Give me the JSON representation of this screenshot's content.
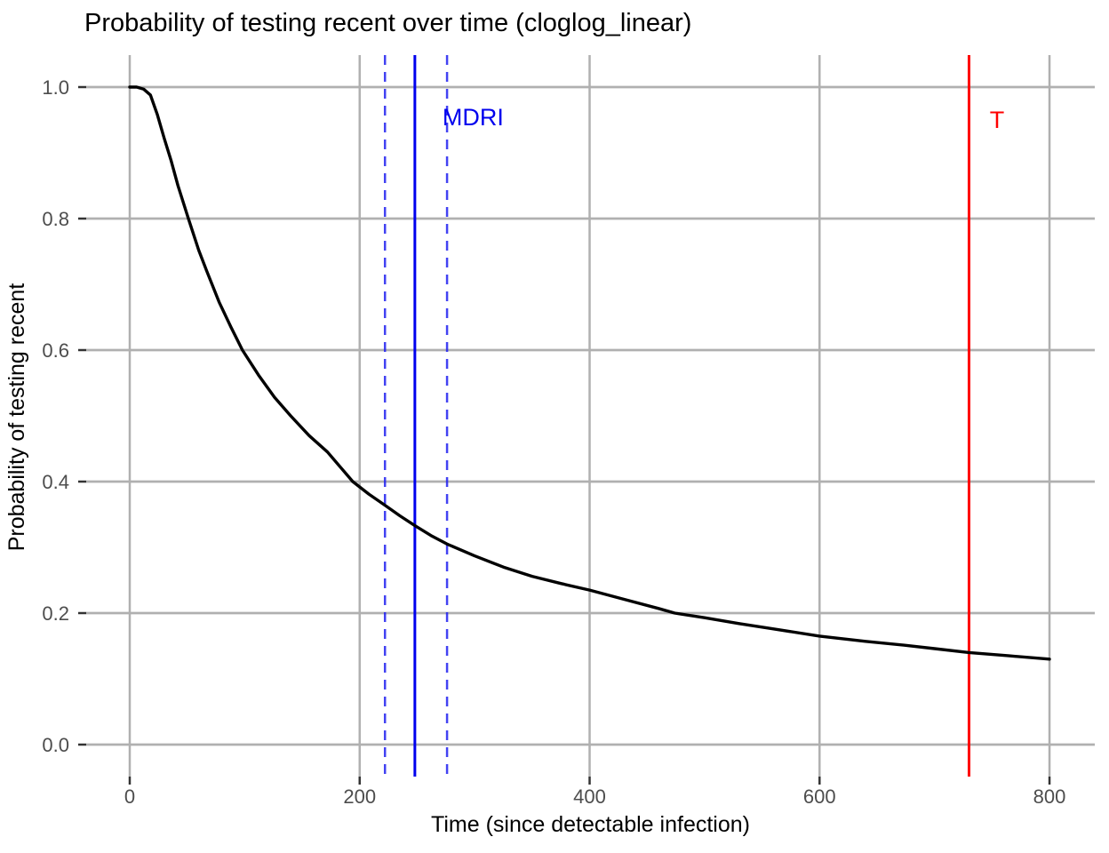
{
  "chart_data": {
    "type": "line",
    "title": "Probability of testing recent over time (cloglog_linear)",
    "xlabel": "Time (since detectable infection)",
    "ylabel": "Probability of testing recent",
    "x_ticks": [
      0,
      200,
      400,
      600,
      800
    ],
    "y_ticks": [
      0.0,
      0.2,
      0.4,
      0.6,
      0.8,
      1.0
    ],
    "xlim": [
      0,
      800
    ],
    "ylim": [
      0,
      1
    ],
    "grid": "major gridlines only, grey on white, no panel border",
    "legend": "none",
    "colors": {
      "curve": "#000000",
      "grid": "#b0b0b0",
      "tick_mark": "#333333",
      "tick_label": "#4d4d4d",
      "mdri_blue": "#0000ee",
      "ci_blue_dashed": "#2222f0",
      "t_red": "#ff0000"
    },
    "series": [
      {
        "name": "probability-of-testing-recent-curve",
        "color": "#000000",
        "points": [
          [
            0,
            1.0
          ],
          [
            6,
            1.0
          ],
          [
            12,
            0.997
          ],
          [
            18,
            0.988
          ],
          [
            24,
            0.958
          ],
          [
            30,
            0.922
          ],
          [
            36,
            0.888
          ],
          [
            42,
            0.85
          ],
          [
            51,
            0.8
          ],
          [
            60,
            0.752
          ],
          [
            67,
            0.72
          ],
          [
            78,
            0.672
          ],
          [
            88,
            0.635
          ],
          [
            98,
            0.6
          ],
          [
            112,
            0.562
          ],
          [
            126,
            0.528
          ],
          [
            140,
            0.5
          ],
          [
            156,
            0.47
          ],
          [
            172,
            0.445
          ],
          [
            194,
            0.4
          ],
          [
            208,
            0.381
          ],
          [
            222,
            0.364
          ],
          [
            235,
            0.348
          ],
          [
            248,
            0.333
          ],
          [
            262,
            0.318
          ],
          [
            276,
            0.305
          ],
          [
            300,
            0.287
          ],
          [
            325,
            0.27
          ],
          [
            350,
            0.256
          ],
          [
            375,
            0.245
          ],
          [
            400,
            0.235
          ],
          [
            430,
            0.221
          ],
          [
            460,
            0.207
          ],
          [
            474,
            0.2
          ],
          [
            500,
            0.193
          ],
          [
            530,
            0.184
          ],
          [
            560,
            0.176
          ],
          [
            600,
            0.165
          ],
          [
            640,
            0.157
          ],
          [
            675,
            0.151
          ],
          [
            700,
            0.146
          ],
          [
            730,
            0.14
          ],
          [
            765,
            0.135
          ],
          [
            800,
            0.13
          ]
        ]
      }
    ],
    "vlines": [
      {
        "name": "mdri-line",
        "x": 248,
        "style": "solid",
        "color": "#0000ee",
        "width": 3
      },
      {
        "name": "mdri-ci-lower",
        "x": 222,
        "style": "dashed",
        "color": "#2222f0",
        "width": 2.5
      },
      {
        "name": "mdri-ci-upper",
        "x": 276,
        "style": "dashed",
        "color": "#2222f0",
        "width": 2.5
      },
      {
        "name": "t-cutoff-line",
        "x": 730,
        "style": "solid",
        "color": "#ff0000",
        "width": 3
      }
    ],
    "annotations": [
      {
        "name": "mdri-label",
        "text": "MDRI",
        "x": 272,
        "y": 0.954,
        "color": "#0000ee"
      },
      {
        "name": "t-label",
        "text": "T",
        "x": 748,
        "y": 0.95,
        "color": "#ff0000"
      }
    ]
  }
}
